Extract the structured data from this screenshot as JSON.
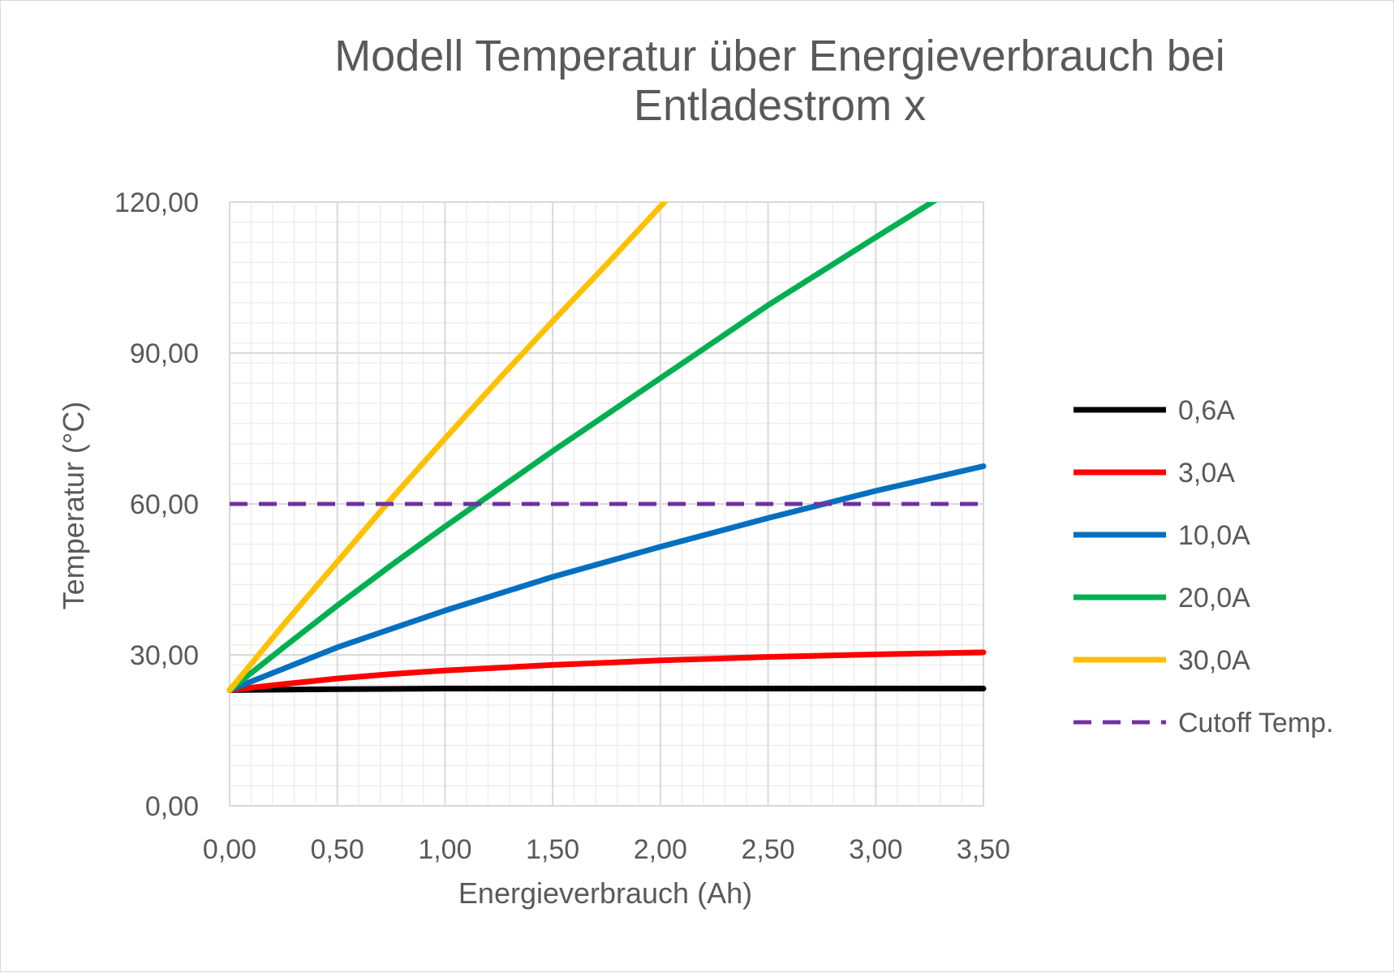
{
  "chart_data": {
    "type": "line",
    "title_lines": [
      "Modell Temperatur über Energieverbrauch bei",
      "Entladestrom x"
    ],
    "xlabel": "Energieverbrauch (Ah)",
    "ylabel": "Temperatur (°C)",
    "xlim": [
      0,
      3.5
    ],
    "ylim": [
      0,
      120
    ],
    "x_ticks": [
      "0,00",
      "0,50",
      "1,00",
      "1,50",
      "2,00",
      "2,50",
      "3,00",
      "3,50"
    ],
    "y_ticks": [
      "0,00",
      "30,00",
      "60,00",
      "90,00",
      "120,00"
    ],
    "grid": true,
    "legend_position": "right",
    "series": [
      {
        "name": "0,6A",
        "color": "#000000",
        "x": [
          0,
          0.5,
          1.0,
          1.5,
          2.0,
          2.5,
          3.0,
          3.5
        ],
        "y": [
          23,
          23.2,
          23.3,
          23.3,
          23.3,
          23.3,
          23.3,
          23.3
        ]
      },
      {
        "name": "3,0A",
        "color": "#ff0000",
        "x": [
          0,
          0.25,
          0.5,
          0.75,
          1.0,
          1.5,
          2.0,
          2.5,
          3.0,
          3.5
        ],
        "y": [
          23,
          24.2,
          25.3,
          26.2,
          26.9,
          28.0,
          28.9,
          29.6,
          30.1,
          30.5
        ]
      },
      {
        "name": "10,0A",
        "color": "#0070c0",
        "x": [
          0,
          0.5,
          1.0,
          1.5,
          2.0,
          2.5,
          3.0,
          3.5
        ],
        "y": [
          23,
          31.5,
          38.8,
          45.5,
          51.5,
          57.2,
          62.6,
          67.5
        ]
      },
      {
        "name": "20,0A",
        "color": "#00b050",
        "x": [
          0,
          0.25,
          0.5,
          0.75,
          1.0,
          1.25,
          1.5,
          2.0,
          2.5,
          3.0,
          3.3
        ],
        "y": [
          23,
          31.5,
          39.8,
          47.8,
          55.5,
          63.0,
          70.5,
          85.0,
          99.5,
          113.0,
          121.0
        ]
      },
      {
        "name": "30,0A",
        "color": "#ffc000",
        "x": [
          0,
          0.25,
          0.5,
          0.75,
          1.0,
          1.25,
          1.5,
          1.75,
          2.04
        ],
        "y": [
          23,
          36.0,
          48.5,
          61.0,
          73.0,
          84.8,
          96.3,
          107.6,
          121.0
        ]
      },
      {
        "name": "Cutoff Temp.",
        "color": "#7030a0",
        "dashed": true,
        "x": [
          0,
          3.5
        ],
        "y": [
          60,
          60
        ]
      }
    ]
  }
}
